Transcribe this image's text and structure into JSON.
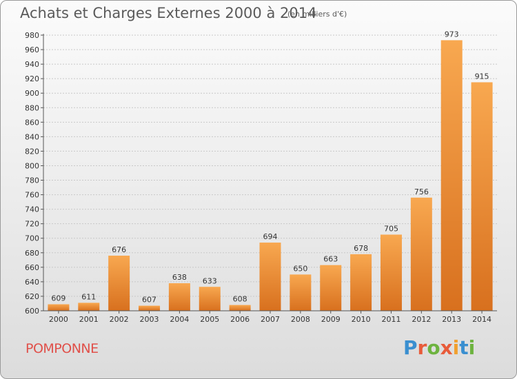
{
  "header": {
    "title": "Achats et Charges Externes 2000 à 2014",
    "subtitle": "(en milliers d'€)"
  },
  "footer": {
    "city": "POMPONNE",
    "logo_text": "Proxiti",
    "logo_letters": [
      "P",
      "r",
      "o",
      "x",
      "i",
      "t",
      "i"
    ],
    "logo_colors": [
      "#3a8fd0",
      "#e85b3a",
      "#6db33f",
      "#e85b3a",
      "#f0a030",
      "#3a8fd0",
      "#6db33f"
    ]
  },
  "colors": {
    "bar_light": "#f8a850",
    "bar_dark": "#d8701e",
    "label": "#333333",
    "grid": "#c8c8c8"
  },
  "chart_data": {
    "type": "bar",
    "title": "Achats et Charges Externes 2000 à 2014",
    "subtitle": "(en milliers d'€)",
    "categories": [
      "2000",
      "2001",
      "2002",
      "2003",
      "2004",
      "2005",
      "2006",
      "2007",
      "2008",
      "2009",
      "2010",
      "2011",
      "2012",
      "2013",
      "2014"
    ],
    "values": [
      609,
      611,
      676,
      607,
      638,
      633,
      608,
      694,
      650,
      663,
      678,
      705,
      756,
      973,
      915
    ],
    "ylim": [
      600,
      980
    ],
    "yticks": [
      600,
      620,
      640,
      660,
      680,
      700,
      720,
      740,
      760,
      780,
      800,
      820,
      840,
      860,
      880,
      900,
      920,
      940,
      960,
      980
    ],
    "grid": true,
    "legend": "none"
  }
}
